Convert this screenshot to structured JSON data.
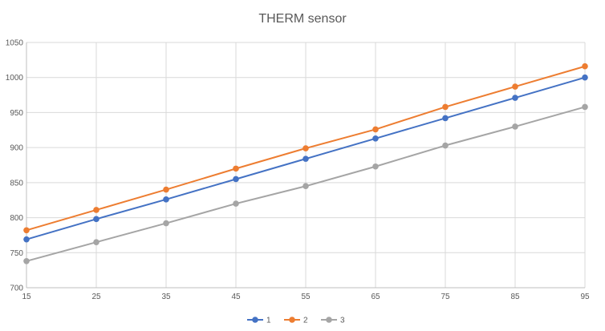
{
  "chart_data": {
    "type": "line",
    "title": "THERM sensor",
    "xlabel": "",
    "ylabel": "",
    "x": [
      15,
      25,
      35,
      45,
      55,
      65,
      75,
      85,
      95
    ],
    "xticks": [
      "15",
      "25",
      "35",
      "45",
      "55",
      "65",
      "75",
      "85",
      "95"
    ],
    "ylim": [
      700,
      1050
    ],
    "yticks": [
      "700",
      "750",
      "800",
      "850",
      "900",
      "950",
      "1000",
      "1050"
    ],
    "grid": true,
    "legend_position": "bottom",
    "series": [
      {
        "name": "1",
        "color": "#4472c4",
        "values": [
          769,
          798,
          826,
          855,
          884,
          913,
          942,
          971,
          1000
        ]
      },
      {
        "name": "2",
        "color": "#ed7d31",
        "values": [
          782,
          811,
          840,
          870,
          899,
          926,
          958,
          987,
          1016
        ]
      },
      {
        "name": "3",
        "color": "#a5a5a5",
        "values": [
          738,
          765,
          792,
          820,
          845,
          873,
          903,
          930,
          958
        ]
      }
    ]
  }
}
